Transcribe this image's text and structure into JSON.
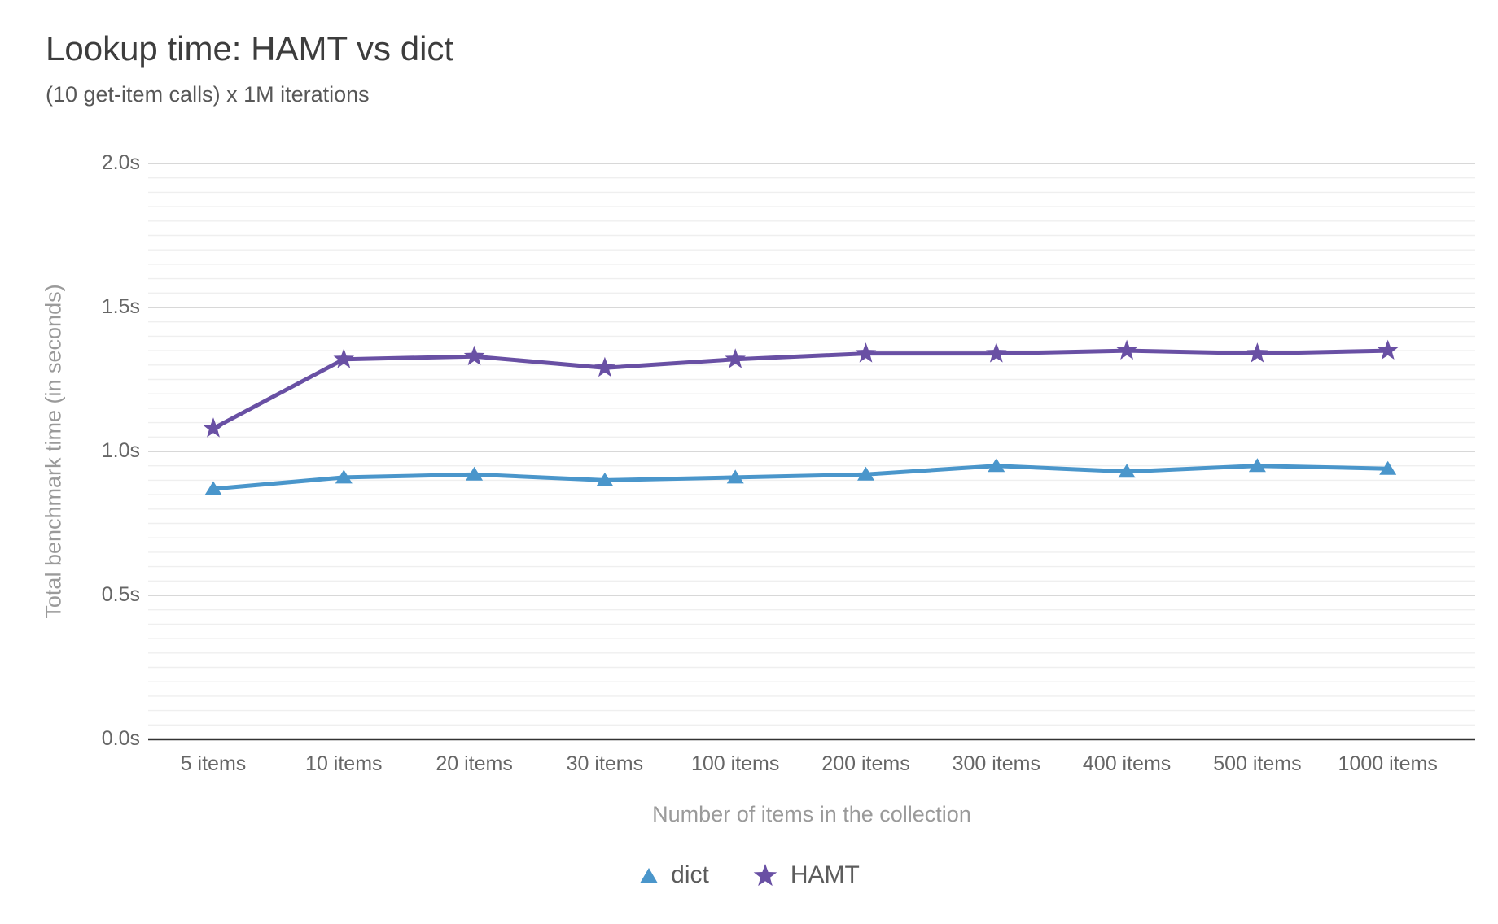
{
  "chart_data": {
    "type": "line",
    "title": "Lookup time: HAMT vs dict",
    "subtitle": "(10 get-item calls) x 1M iterations",
    "xlabel": "Number of items in the collection",
    "ylabel": "Total benchmark time (in seconds)",
    "categories": [
      "5 items",
      "10 items",
      "20 items",
      "30 items",
      "100 items",
      "200 items",
      "300 items",
      "400 items",
      "500 items",
      "1000 items"
    ],
    "series": [
      {
        "name": "dict",
        "marker": "triangle",
        "color": "#4A96CB",
        "values": [
          0.87,
          0.91,
          0.92,
          0.9,
          0.91,
          0.92,
          0.95,
          0.93,
          0.95,
          0.94
        ]
      },
      {
        "name": "HAMT",
        "marker": "star",
        "color": "#6950A4",
        "values": [
          1.08,
          1.32,
          1.33,
          1.29,
          1.32,
          1.34,
          1.34,
          1.35,
          1.34,
          1.35
        ]
      }
    ],
    "ylim": [
      0,
      2
    ],
    "yticks": [
      {
        "value": 0.0,
        "label": "0.0s"
      },
      {
        "value": 0.5,
        "label": "0.5s"
      },
      {
        "value": 1.0,
        "label": "1.0s"
      },
      {
        "value": 1.5,
        "label": "1.5s"
      },
      {
        "value": 2.0,
        "label": "2.0s"
      }
    ],
    "minor_grid_step": 0.05,
    "grid": true,
    "legend_position": "bottom",
    "colors": {
      "background": "#ffffff",
      "title": "#3d3d3d",
      "subtitle": "#575757",
      "tick_label": "#666666",
      "axis_title": "#9a9a9a",
      "legend_label": "#5c5c5c",
      "grid_major": "#cccccc",
      "grid_minor": "#efefef",
      "axis_line": "#333333"
    }
  }
}
